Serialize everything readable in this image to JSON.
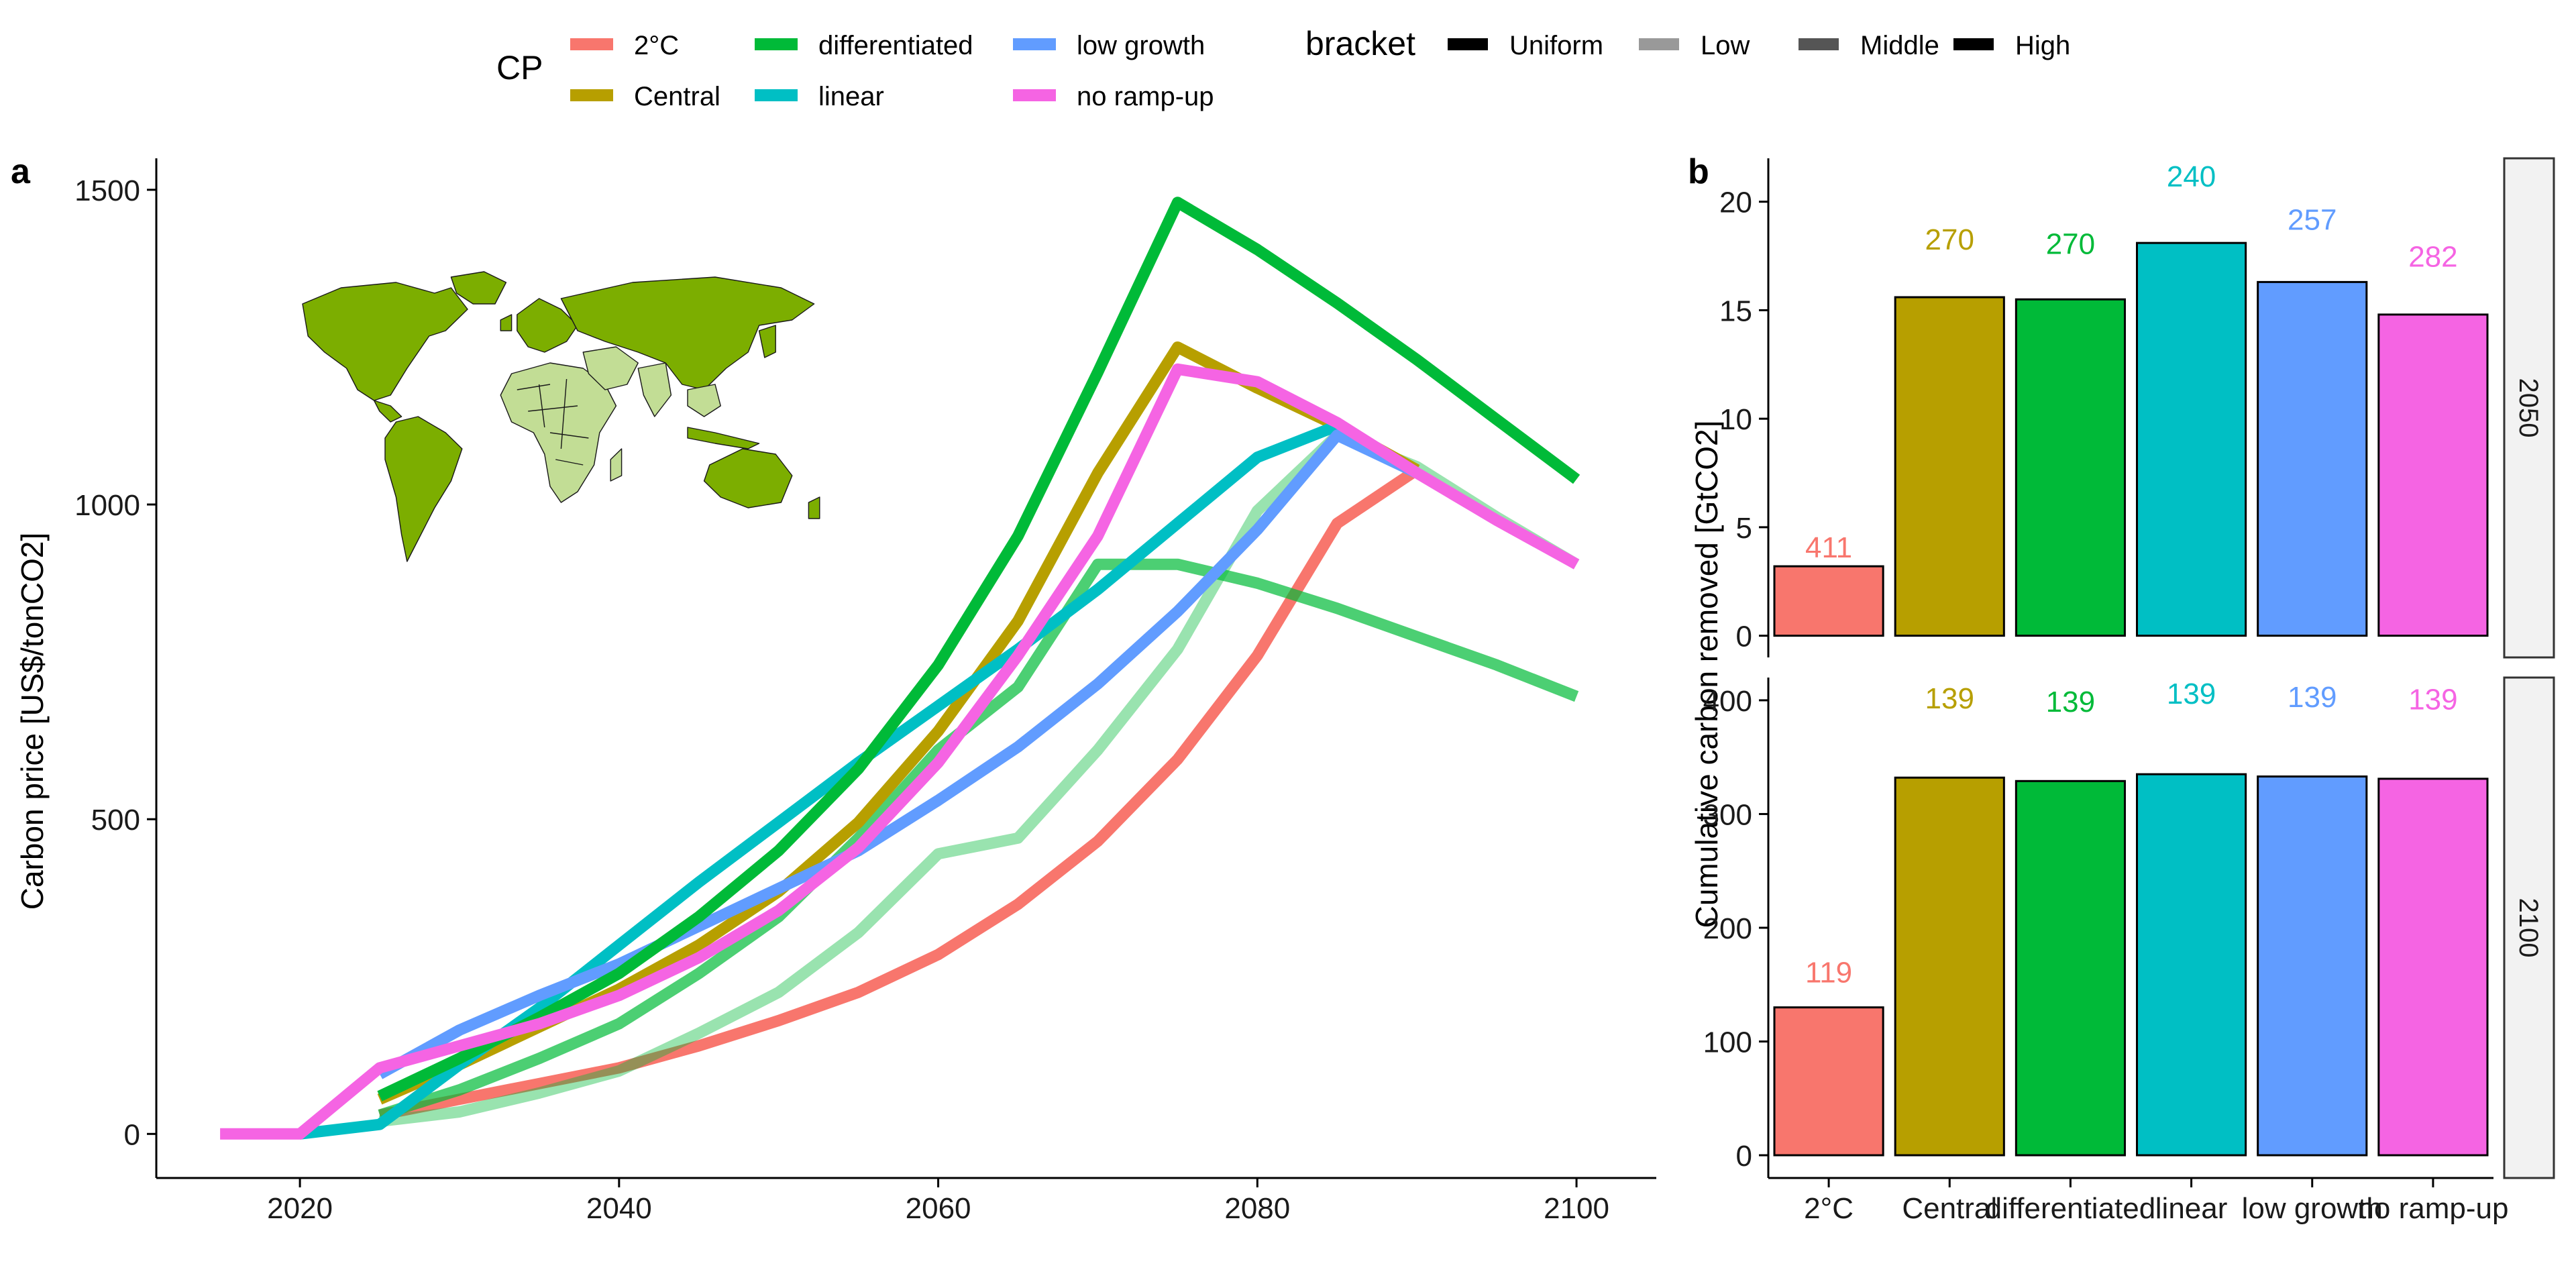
{
  "legend": {
    "cp_title": "CP",
    "bracket_title": "bracket",
    "cp_items": [
      {
        "label": "2°C",
        "color": "#F8766D"
      },
      {
        "label": "Central",
        "color": "#B79F00"
      },
      {
        "label": "differentiated",
        "color": "#00BA38"
      },
      {
        "label": "linear",
        "color": "#00BFC4"
      },
      {
        "label": "low growth",
        "color": "#619CFF"
      },
      {
        "label": "no ramp-up",
        "color": "#F564E3"
      }
    ],
    "bracket_items": [
      {
        "label": "Uniform",
        "color": "#000000"
      },
      {
        "label": "Low",
        "color": "#999999"
      },
      {
        "label": "Middle",
        "color": "#555555"
      },
      {
        "label": "High",
        "color": "#000000"
      }
    ]
  },
  "chart_data": [
    {
      "panel": "a",
      "type": "line",
      "ylabel": "Carbon price [US$/tonCO2]",
      "xlim": [
        2011,
        2105
      ],
      "ylim": [
        -70,
        1550
      ],
      "xticks": [
        2020,
        2040,
        2060,
        2080,
        2100
      ],
      "yticks": [
        0,
        500,
        1000,
        1500
      ],
      "grid": false,
      "legend": "top",
      "series": [
        {
          "name": "2°C",
          "color": "#F8766D",
          "alpha": 1.0,
          "x": [
            2025,
            2030,
            2035,
            2040,
            2045,
            2050,
            2055,
            2060,
            2065,
            2070,
            2075,
            2080,
            2085,
            2090
          ],
          "y": [
            30,
            55,
            80,
            105,
            140,
            180,
            225,
            285,
            365,
            465,
            595,
            760,
            970,
            1055
          ]
        },
        {
          "name": "differentiated",
          "color": "#00BA38",
          "alpha": 0.4,
          "x": [
            2025,
            2030,
            2035,
            2040,
            2045,
            2050,
            2055,
            2060,
            2065,
            2070,
            2075,
            2080,
            2085,
            2090,
            2095,
            2100
          ],
          "y": [
            20,
            35,
            65,
            100,
            160,
            225,
            320,
            445,
            470,
            610,
            770,
            990,
            1110,
            1060,
            980,
            905
          ]
        },
        {
          "name": "differentiated",
          "color": "#00BA38",
          "alpha": 0.7,
          "x": [
            2025,
            2030,
            2035,
            2040,
            2045,
            2050,
            2055,
            2060,
            2065,
            2070,
            2075,
            2080,
            2085,
            2090,
            2095,
            2100
          ],
          "y": [
            30,
            70,
            120,
            175,
            255,
            345,
            470,
            610,
            710,
            905,
            905,
            875,
            835,
            790,
            745,
            695
          ]
        },
        {
          "name": "Central",
          "color": "#B79F00",
          "alpha": 1.0,
          "x": [
            2025,
            2030,
            2035,
            2040,
            2045,
            2050,
            2055,
            2060,
            2065,
            2070,
            2075,
            2080,
            2085,
            2090
          ],
          "y": [
            55,
            110,
            170,
            230,
            300,
            385,
            495,
            640,
            815,
            1050,
            1250,
            1185,
            1125,
            1055
          ]
        },
        {
          "name": "linear",
          "color": "#00BFC4",
          "alpha": 1.0,
          "x": [
            2020,
            2025,
            2030,
            2035,
            2040,
            2045,
            2050,
            2055,
            2060,
            2065,
            2070,
            2075,
            2080,
            2085
          ],
          "y": [
            0,
            15,
            110,
            200,
            300,
            400,
            495,
            590,
            680,
            770,
            865,
            970,
            1075,
            1125
          ]
        },
        {
          "name": "low growth",
          "color": "#619CFF",
          "alpha": 1.0,
          "x": [
            2025,
            2030,
            2035,
            2040,
            2045,
            2050,
            2055,
            2060,
            2065,
            2070,
            2075,
            2080,
            2085,
            2090
          ],
          "y": [
            95,
            165,
            220,
            270,
            330,
            390,
            450,
            530,
            615,
            715,
            830,
            960,
            1110,
            1050
          ]
        },
        {
          "name": "differentiated",
          "color": "#00BA38",
          "alpha": 1.0,
          "x": [
            2025,
            2030,
            2035,
            2040,
            2045,
            2050,
            2055,
            2060,
            2065,
            2070,
            2075,
            2080,
            2085,
            2090,
            2095,
            2100
          ],
          "y": [
            60,
            120,
            185,
            255,
            345,
            450,
            580,
            745,
            950,
            1210,
            1480,
            1405,
            1320,
            1230,
            1135,
            1040
          ]
        },
        {
          "name": "no ramp-up",
          "color": "#F564E3",
          "alpha": 1.0,
          "x": [
            2015,
            2020,
            2025,
            2030,
            2035,
            2040,
            2045,
            2050,
            2055,
            2060,
            2065,
            2070,
            2075,
            2080,
            2085,
            2090,
            2095,
            2100
          ],
          "y": [
            0,
            0,
            105,
            140,
            175,
            220,
            280,
            355,
            455,
            590,
            760,
            950,
            1215,
            1195,
            1130,
            1050,
            975,
            905
          ]
        }
      ]
    },
    {
      "panel": "b",
      "type": "bar",
      "ylabel": "Cumulative carbon removed [GtCO2]",
      "categories": [
        "2°C",
        "Central",
        "differentiated",
        "linear",
        "low growth",
        "no ramp-up"
      ],
      "colors": [
        "#F8766D",
        "#B79F00",
        "#00BA38",
        "#00BFC4",
        "#619CFF",
        "#F564E3"
      ],
      "facets": [
        {
          "name": "2050",
          "ylim": [
            -1,
            22
          ],
          "yticks": [
            0,
            5,
            10,
            15,
            20
          ],
          "values": [
            3.2,
            15.6,
            15.5,
            18.1,
            16.3,
            14.8
          ],
          "labels": [
            "411",
            "270",
            "270",
            "240",
            "257",
            "282"
          ],
          "label_values": [
            3.6,
            17.8,
            17.6,
            20.7,
            18.7,
            17.0
          ]
        },
        {
          "name": "2100",
          "ylim": [
            -20,
            420
          ],
          "yticks": [
            0,
            100,
            200,
            300,
            400
          ],
          "values": [
            130,
            332,
            329,
            335,
            333,
            331
          ],
          "labels": [
            "119",
            "139",
            "139",
            "139",
            "139",
            "139"
          ],
          "label_values": [
            152,
            393,
            390,
            397,
            394,
            392
          ]
        }
      ]
    }
  ],
  "panel_labels": {
    "a": "a",
    "b": "b"
  }
}
